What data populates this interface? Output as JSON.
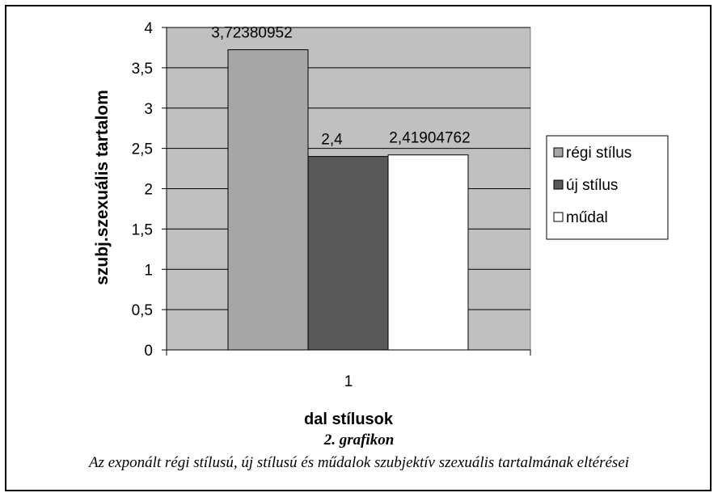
{
  "chart_data": {
    "type": "bar",
    "categories": [
      "1"
    ],
    "series": [
      {
        "name": "régi stílus",
        "values": [
          3.72380952
        ],
        "label": "3,72380952",
        "color": "#a6a6a6"
      },
      {
        "name": "új stílus",
        "values": [
          2.4
        ],
        "label": "2,4",
        "color": "#595959"
      },
      {
        "name": "műdal",
        "values": [
          2.41904762
        ],
        "label": "2,41904762",
        "color": "#ffffff"
      }
    ],
    "ylabel": "szubj.szexuális tartalom",
    "xlabel": "dal stílusok",
    "ylim": [
      0,
      4
    ],
    "yticks": [
      {
        "value": 0,
        "label": "0"
      },
      {
        "value": 0.5,
        "label": "0,5"
      },
      {
        "value": 1,
        "label": "1"
      },
      {
        "value": 1.5,
        "label": "1,5"
      },
      {
        "value": 2,
        "label": "2"
      },
      {
        "value": 2.5,
        "label": "2,5"
      },
      {
        "value": 3,
        "label": "3"
      },
      {
        "value": 3.5,
        "label": "3,5"
      },
      {
        "value": 4,
        "label": "4"
      }
    ],
    "grid": true,
    "legend_position": "right",
    "plot_background": "#c0c0c0"
  },
  "caption": {
    "title": "2. grafikon",
    "text": "Az exponált régi stílusú, új stílusú és műdalok szubjektív szexuális tartalmának eltérései"
  }
}
